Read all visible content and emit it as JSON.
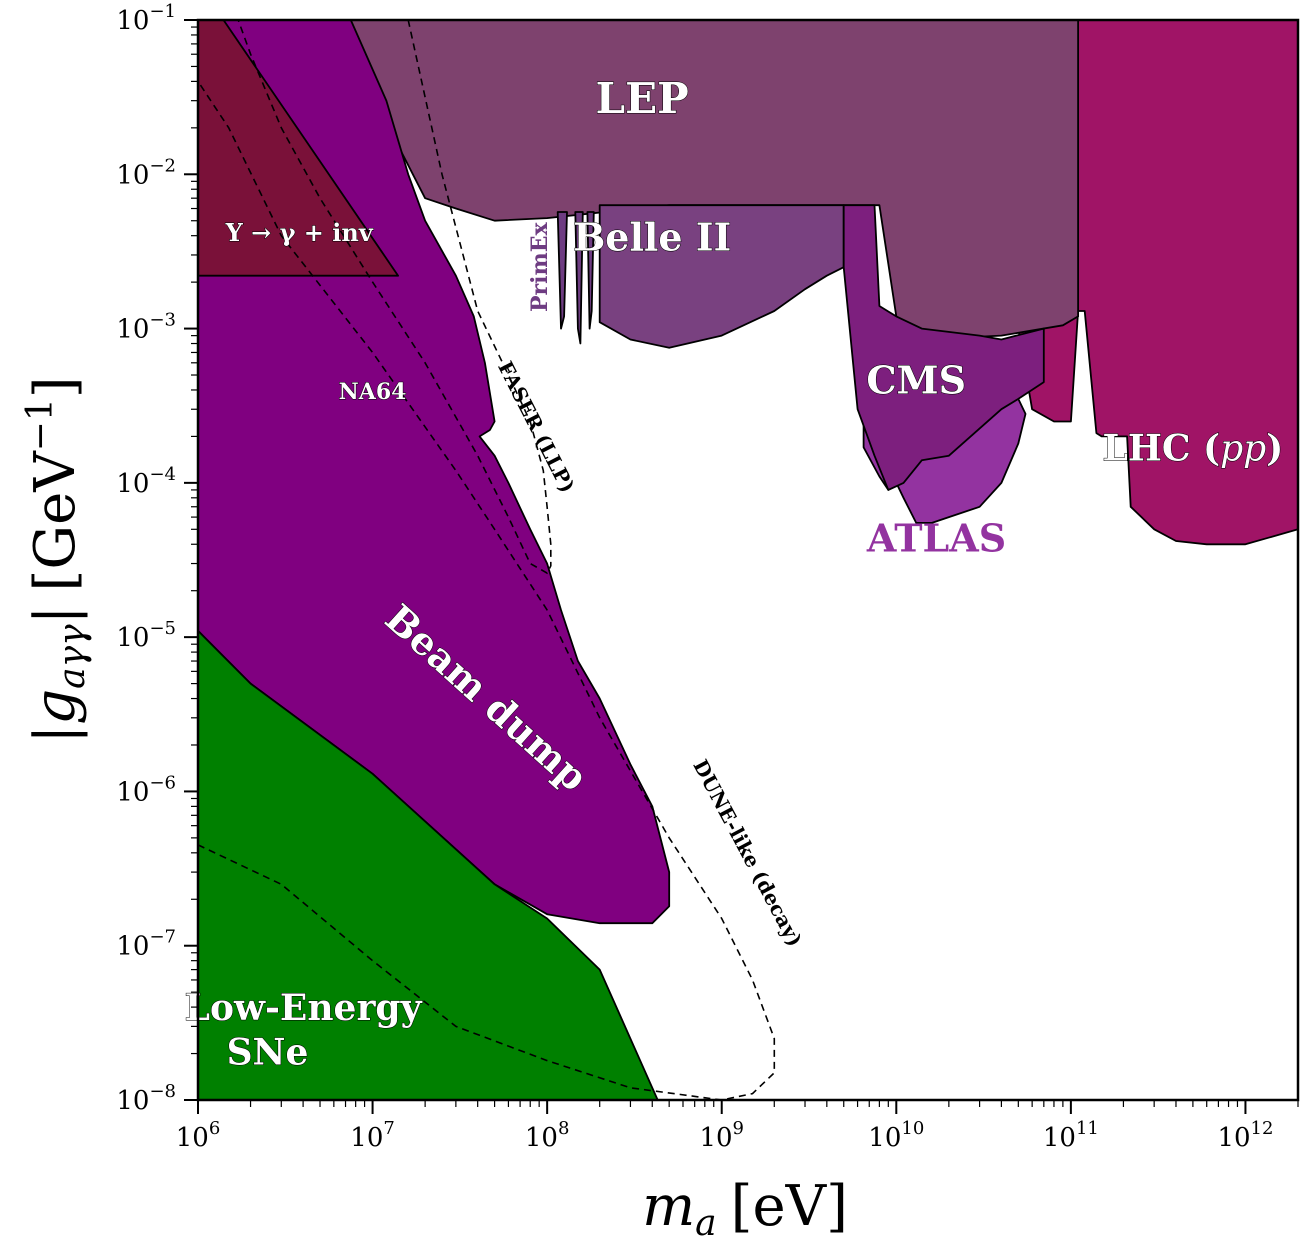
{
  "chart_data": {
    "type": "area",
    "xscale": "log",
    "yscale": "log",
    "xlim": [
      1000000.0,
      2000000000000.0
    ],
    "ylim": [
      1e-08,
      0.1
    ],
    "xlabel": {
      "main": "m",
      "sub": "a",
      "unit": "[eV]"
    },
    "ylabel": {
      "main": "g",
      "sub": "aγγ",
      "unit": "[GeV",
      "unit_exp": "−1",
      "unit_close": "]"
    },
    "x_ticks": [
      {
        "base": "10",
        "exp": "6",
        "value": 1000000.0
      },
      {
        "base": "10",
        "exp": "7",
        "value": 10000000.0
      },
      {
        "base": "10",
        "exp": "8",
        "value": 100000000.0
      },
      {
        "base": "10",
        "exp": "9",
        "value": 1000000000.0
      },
      {
        "base": "10",
        "exp": "10",
        "value": 10000000000.0
      },
      {
        "base": "10",
        "exp": "11",
        "value": 100000000000.0
      },
      {
        "base": "10",
        "exp": "12",
        "value": 1000000000000.0
      }
    ],
    "y_ticks": [
      {
        "base": "10",
        "exp": "−8",
        "value": 1e-08
      },
      {
        "base": "10",
        "exp": "−7",
        "value": 1e-07
      },
      {
        "base": "10",
        "exp": "−6",
        "value": 1e-06
      },
      {
        "base": "10",
        "exp": "−5",
        "value": 1e-05
      },
      {
        "base": "10",
        "exp": "−4",
        "value": 0.0001
      },
      {
        "base": "10",
        "exp": "−3",
        "value": 0.001
      },
      {
        "base": "10",
        "exp": "−2",
        "value": 0.01
      },
      {
        "base": "10",
        "exp": "−1",
        "value": 0.1
      }
    ],
    "regions": [
      {
        "id": "lhc",
        "color": "#a01466",
        "points": [
          [
            60000000000.0,
            0.1
          ],
          [
            1000000000000.0,
            0.1
          ],
          [
            2000000000000.0,
            0.1
          ],
          [
            2000000000000.0,
            5e-05
          ],
          [
            1000000000000.0,
            4e-05
          ],
          [
            600000000000.0,
            4e-05
          ],
          [
            400000000000.0,
            4.2e-05
          ],
          [
            300000000000.0,
            5e-05
          ],
          [
            220000000000.0,
            7e-05
          ],
          [
            210000000000.0,
            0.0002
          ],
          [
            150000000000.0,
            0.0002
          ],
          [
            140000000000.0,
            0.00021
          ],
          [
            120000000000.0,
            0.0013
          ],
          [
            110000000000.0,
            0.0013
          ],
          [
            100000000000.0,
            0.00025
          ],
          [
            80000000000.0,
            0.00025
          ],
          [
            60000000000.0,
            0.0003
          ],
          [
            50000000000.0,
            0.001
          ],
          [
            70000000000.0,
            0.001
          ],
          [
            60000000000.0,
            0.1
          ]
        ]
      },
      {
        "id": "lep",
        "color": "#7e426e",
        "points": [
          [
            6000000.0,
            0.1
          ],
          [
            110000000000.0,
            0.1
          ],
          [
            110000000000.0,
            0.0012
          ],
          [
            90000000000.0,
            0.00105
          ],
          [
            40000000000.0,
            0.0009
          ],
          [
            14000000000.0,
            0.00085
          ],
          [
            10000000000.0,
            0.0012
          ],
          [
            8000000000.0,
            0.0063
          ],
          [
            500000000.0,
            0.0063
          ],
          [
            100000000.0,
            0.0052
          ],
          [
            50000000.0,
            0.005
          ],
          [
            30000000.0,
            0.006
          ],
          [
            20000000.0,
            0.007
          ],
          [
            6000000.0,
            0.1
          ]
        ]
      },
      {
        "id": "belleii",
        "color": "#794180",
        "points": [
          [
            200000000.0,
            0.0063
          ],
          [
            5000000000.0,
            0.0063
          ],
          [
            5000000000.0,
            0.0025
          ],
          [
            4000000000.0,
            0.0022
          ],
          [
            3000000000.0,
            0.0018
          ],
          [
            2000000000.0,
            0.0013
          ],
          [
            1000000000.0,
            0.0009
          ],
          [
            500000000.0,
            0.00075
          ],
          [
            300000000.0,
            0.00085
          ],
          [
            200000000.0,
            0.0011
          ],
          [
            200000000.0,
            0.0063
          ]
        ]
      },
      {
        "id": "primex1",
        "color": "#6e3c82",
        "points": [
          [
            115000000.0,
            0.0057
          ],
          [
            130000000.0,
            0.0057
          ],
          [
            125000000.0,
            0.0012
          ],
          [
            120000000.0,
            0.001
          ],
          [
            115000000.0,
            0.0057
          ]
        ]
      },
      {
        "id": "primex2",
        "color": "#6e3c82",
        "points": [
          [
            145000000.0,
            0.0057
          ],
          [
            160000000.0,
            0.0057
          ],
          [
            155000000.0,
            0.0008
          ],
          [
            150000000.0,
            0.001
          ],
          [
            145000000.0,
            0.0057
          ]
        ]
      },
      {
        "id": "primex3",
        "color": "#6e3c82",
        "points": [
          [
            170000000.0,
            0.0057
          ],
          [
            185000000.0,
            0.0057
          ],
          [
            180000000.0,
            0.0013
          ],
          [
            175000000.0,
            0.001
          ],
          [
            170000000.0,
            0.0057
          ]
        ]
      },
      {
        "id": "atlas",
        "color": "#9333a0",
        "points": [
          [
            6500000000.0,
            0.00025
          ],
          [
            6500000000.0,
            0.00017
          ],
          [
            8000000000.0,
            0.00011
          ],
          [
            9000000000.0,
            9e-05
          ],
          [
            10000000000.0,
            0.0001
          ],
          [
            11000000000.0,
            8e-05
          ],
          [
            13000000000.0,
            5.5e-05
          ],
          [
            16000000000.0,
            5.5e-05
          ],
          [
            20000000000.0,
            6e-05
          ],
          [
            30000000000.0,
            7e-05
          ],
          [
            40000000000.0,
            0.0001
          ],
          [
            50000000000.0,
            0.00018
          ],
          [
            55000000000.0,
            0.00028
          ],
          [
            50000000000.0,
            0.00035
          ],
          [
            40000000000.0,
            0.00037
          ],
          [
            20000000000.0,
            0.00018
          ],
          [
            10000000000.0,
            0.00018
          ],
          [
            8000000000.0,
            0.0002
          ],
          [
            6500000000.0,
            0.00025
          ]
        ]
      },
      {
        "id": "cms",
        "color": "#7d1f7e",
        "points": [
          [
            5000000000.0,
            0.0063
          ],
          [
            7500000000.0,
            0.0063
          ],
          [
            8000000000.0,
            0.0014
          ],
          [
            10000000000.0,
            0.0012
          ],
          [
            14000000000.0,
            0.001
          ],
          [
            30000000000.0,
            0.0009
          ],
          [
            40000000000.0,
            0.00085
          ],
          [
            70000000000.0,
            0.001
          ],
          [
            70000000000.0,
            0.00045
          ],
          [
            50000000000.0,
            0.00035
          ],
          [
            40000000000.0,
            0.0003
          ],
          [
            20000000000.0,
            0.00015
          ],
          [
            14000000000.0,
            0.00014
          ],
          [
            11000000000.0,
            0.0001
          ],
          [
            9000000000.0,
            9e-05
          ],
          [
            7500000000.0,
            0.00015
          ],
          [
            6000000000.0,
            0.0003
          ],
          [
            5000000000.0,
            0.0025
          ],
          [
            5000000000.0,
            0.0063
          ]
        ]
      },
      {
        "id": "beamdump",
        "color": "#800080",
        "points": [
          [
            1000000.0,
            0.1
          ],
          [
            7500000.0,
            0.1
          ],
          [
            12000000.0,
            0.03
          ],
          [
            16000000.0,
            0.01
          ],
          [
            20000000.0,
            0.005
          ],
          [
            30000000.0,
            0.0022
          ],
          [
            38000000.0,
            0.0012
          ],
          [
            44000000.0,
            0.0006
          ],
          [
            50000000.0,
            0.00025
          ],
          [
            47000000.0,
            0.00022
          ],
          [
            41000000.0,
            0.0002
          ],
          [
            50000000.0,
            0.00015
          ],
          [
            60000000.0,
            0.0001
          ],
          [
            80000000.0,
            5e-05
          ],
          [
            100000000.0,
            3e-05
          ],
          [
            120000000.0,
            1.5e-05
          ],
          [
            150000000.0,
            7e-06
          ],
          [
            200000000.0,
            4e-06
          ],
          [
            300000000.0,
            1.5e-06
          ],
          [
            400000000.0,
            8e-07
          ],
          [
            500000000.0,
            3e-07
          ],
          [
            500000000.0,
            1.8e-07
          ],
          [
            400000000.0,
            1.4e-07
          ],
          [
            200000000.0,
            1.4e-07
          ],
          [
            100000000.0,
            1.6e-07
          ],
          [
            50000000.0,
            2.5e-07
          ],
          [
            10000000.0,
            1.3e-06
          ],
          [
            2000000.0,
            5e-06
          ],
          [
            1000000.0,
            1.1e-05
          ],
          [
            1000000.0,
            0.1
          ]
        ]
      },
      {
        "id": "upsilon",
        "color": "#7a1139",
        "points": [
          [
            1000000.0,
            0.1
          ],
          [
            1400000.0,
            0.1
          ],
          [
            14000000.0,
            0.0022
          ],
          [
            1000000.0,
            0.0022
          ],
          [
            1000000.0,
            0.1
          ]
        ]
      },
      {
        "id": "sne",
        "color": "#008000",
        "points": [
          [
            1000000.0,
            1.1e-05
          ],
          [
            2000000.0,
            5e-06
          ],
          [
            10000000.0,
            1.3e-06
          ],
          [
            50000000.0,
            2.5e-07
          ],
          [
            100000000.0,
            1.5e-07
          ],
          [
            200000000.0,
            7e-08
          ],
          [
            300000000.0,
            2.5e-08
          ],
          [
            430000000.0,
            1e-08
          ],
          [
            1000000.0,
            1e-08
          ],
          [
            1000000.0,
            1.1e-05
          ]
        ]
      }
    ],
    "dashed_curves": [
      {
        "id": "faser",
        "points": [
          [
            16000000.0,
            0.1
          ],
          [
            25000000.0,
            0.01
          ],
          [
            40000000.0,
            0.0013
          ],
          [
            60000000.0,
            0.0005
          ],
          [
            80000000.0,
            0.00025
          ],
          [
            95000000.0,
            0.00012
          ],
          [
            100000000.0,
            7e-05
          ],
          [
            105000000.0,
            4e-05
          ],
          [
            105000000.0,
            2.9e-05
          ],
          [
            100000000.0,
            2.6e-05
          ],
          [
            80000000.0,
            3e-05
          ],
          [
            60000000.0,
            6e-05
          ],
          [
            40000000.0,
            0.00015
          ],
          [
            20000000.0,
            0.0006
          ],
          [
            10000000.0,
            0.002
          ],
          [
            5000000.0,
            0.007
          ],
          [
            3000000.0,
            0.02
          ],
          [
            2000000.0,
            0.06
          ],
          [
            1700000.0,
            0.1
          ]
        ]
      },
      {
        "id": "dune",
        "points": [
          [
            1000000.0,
            4.5e-07
          ],
          [
            3000000.0,
            2.5e-07
          ],
          [
            10000000.0,
            8e-08
          ],
          [
            30000000.0,
            3e-08
          ],
          [
            100000000.0,
            1.8e-08
          ],
          [
            300000000.0,
            1.2e-08
          ],
          [
            1000000000.0,
            1e-08
          ],
          [
            1500000000.0,
            1.1e-08
          ],
          [
            2000000000.0,
            1.5e-08
          ],
          [
            2000000000.0,
            2.5e-08
          ],
          [
            1500000000.0,
            6e-08
          ],
          [
            1000000000.0,
            1.5e-07
          ],
          [
            500000000.0,
            5e-07
          ],
          [
            200000000.0,
            3e-06
          ],
          [
            100000000.0,
            1.5e-05
          ],
          [
            50000000.0,
            5e-05
          ],
          [
            30000000.0,
            0.00012
          ],
          [
            10000000.0,
            0.0007
          ],
          [
            3000000.0,
            0.004
          ],
          [
            1500000.0,
            0.02
          ],
          [
            1000000.0,
            0.04
          ]
        ]
      }
    ],
    "labels": [
      {
        "id": "lep",
        "text": "LEP",
        "color": "#ffffff",
        "x": 350000000.0,
        "y": 0.025,
        "size": 42,
        "rotate": 0
      },
      {
        "id": "belleii",
        "text": "Belle II",
        "color": "#ffffff",
        "x": 400000000.0,
        "y": 0.0032,
        "size": 38,
        "rotate": 0
      },
      {
        "id": "primex",
        "text": "PrimEx",
        "color": "#6e3c82",
        "x": 100000000.0,
        "y": 0.0025,
        "size": 22,
        "rotate": -90
      },
      {
        "id": "cms",
        "text": "CMS",
        "color": "#ffffff",
        "x": 13000000000.0,
        "y": 0.00038,
        "size": 38,
        "rotate": 0
      },
      {
        "id": "atlas",
        "text": "ATLAS",
        "color": "#9333a0",
        "x": 17000000000.0,
        "y": 3.6e-05,
        "size": 38,
        "rotate": 0
      },
      {
        "id": "lhc",
        "text": "LHC (",
        "color": "#ffffff",
        "x": 500000000000.0,
        "y": 0.00014,
        "size": 36,
        "rotate": 0
      },
      {
        "id": "na64",
        "text": "NA64",
        "color": "#ffffff",
        "x": 10000000.0,
        "y": 0.00035,
        "size": 22,
        "rotate": 0
      },
      {
        "id": "beamdump",
        "text": "Beam dump",
        "color": "#ffffff",
        "x": 40000000.0,
        "y": 3.5e-06,
        "size": 38,
        "rotate": 42
      },
      {
        "id": "faser",
        "text": "FASER (LLP)",
        "color": "#000000",
        "x": 80000000.0,
        "y": 0.00022,
        "size": 20,
        "rotate": 63
      },
      {
        "id": "dune",
        "text": "DUNE-like (decay)",
        "color": "#000000",
        "x": 1300000000.0,
        "y": 3.8e-07,
        "size": 20,
        "rotate": 62
      },
      {
        "id": "sne1",
        "text": "Low-Energy",
        "color": "#ffffff",
        "x": 4000000.0,
        "y": 3.3e-08,
        "size": 36,
        "rotate": 0
      },
      {
        "id": "sne2",
        "text": "SNe",
        "color": "#ffffff",
        "x": 2500000.0,
        "y": 1.7e-08,
        "size": 36,
        "rotate": 0
      },
      {
        "id": "upsilon",
        "text": "Υ → γ + inv",
        "color": "#ffffff",
        "x": 3800000.0,
        "y": 0.0037,
        "size": 24,
        "rotate": 0
      }
    ],
    "lhc_pp": "pp",
    "lhc_close": ")"
  }
}
